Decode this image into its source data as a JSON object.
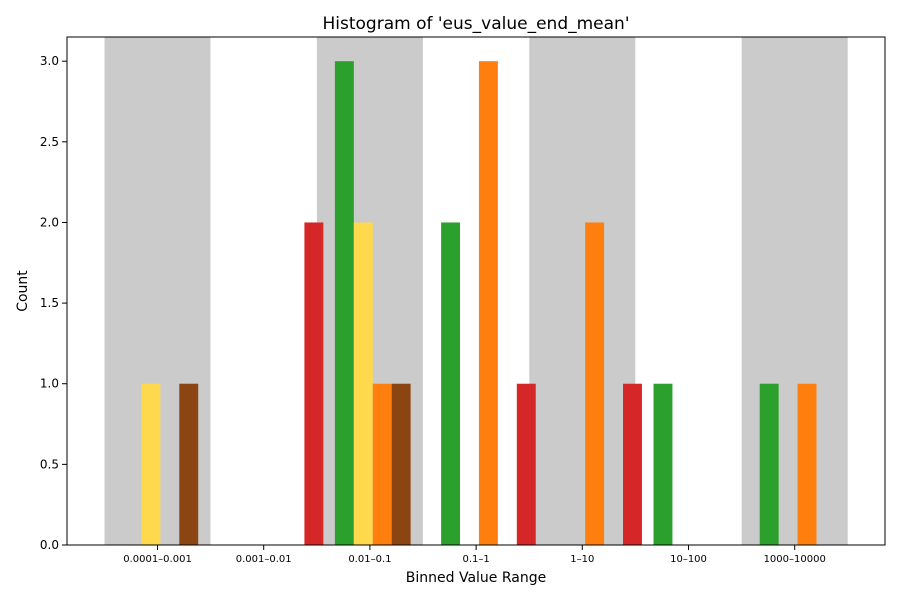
{
  "chart_data": {
    "type": "bar",
    "title": "Histogram of 'eus_value_end_mean'",
    "xlabel": "Binned Value Range",
    "ylabel": "Count",
    "ylim": [
      0,
      3.15
    ],
    "yticks": [
      "0.0",
      "0.5",
      "1.0",
      "1.5",
      "2.0",
      "2.5",
      "3.0"
    ],
    "categories": [
      "0.0001–0.001",
      "0.001–0.01",
      "0.01–0.1",
      "0.1–1",
      "1–10",
      "10–100",
      "1000–10000"
    ],
    "shaded_bins": [
      "0.0001–0.001",
      "0.01–0.1",
      "1–10",
      "1000–10000"
    ],
    "shade_color": "#cbcbcb",
    "series": [
      {
        "color": "#2ca02c",
        "values": [
          0,
          0,
          3,
          2,
          0,
          1,
          1
        ]
      },
      {
        "color": "#ffd94d",
        "values": [
          1,
          0,
          2,
          0,
          0,
          0,
          0
        ]
      },
      {
        "color": "#ff7f0e",
        "values": [
          0,
          0,
          1,
          3,
          2,
          0,
          1
        ]
      },
      {
        "color": "#8b4513",
        "values": [
          1,
          0,
          1,
          0,
          0,
          0,
          0
        ]
      },
      {
        "color": "#d62728",
        "values": [
          0,
          2,
          0,
          1,
          1,
          0,
          0
        ]
      }
    ],
    "grid": false,
    "legend": "none"
  }
}
